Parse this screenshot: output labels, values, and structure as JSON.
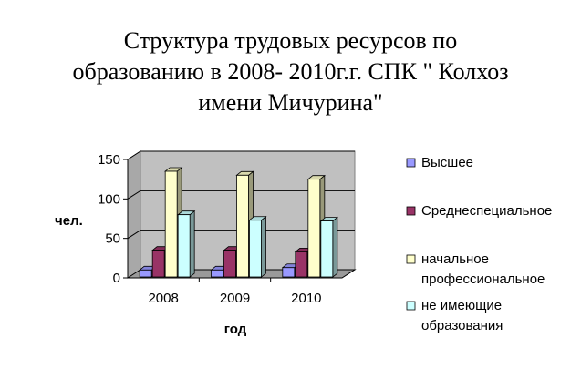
{
  "chart_data": {
    "type": "bar",
    "title_lines": [
      "Структура трудовых ресурсов по",
      "образованию в 2008- 2010г.г. СПК \" Колхоз",
      "имени Мичурина\""
    ],
    "xlabel": "год",
    "ylabel": "чел.",
    "categories": [
      "2008",
      "2009",
      "2010"
    ],
    "ylim": [
      0,
      150
    ],
    "yticks": [
      0,
      50,
      100,
      150
    ],
    "grid": true,
    "legend_position": "right",
    "style": "3d-column",
    "series": [
      {
        "name": "Высшее",
        "values": [
          10,
          10,
          13
        ],
        "color": "#9999ff"
      },
      {
        "name": "Среднеспециальное",
        "values": [
          35,
          35,
          33
        ],
        "color": "#993366"
      },
      {
        "name": "начальное профессиональное",
        "legend_lines": [
          "начальное",
          "профессиональное"
        ],
        "values": [
          135,
          130,
          125
        ],
        "color": "#ffffcc"
      },
      {
        "name": "не имеющие образования",
        "legend_lines": [
          "не имеющие",
          "образования"
        ],
        "values": [
          80,
          73,
          72
        ],
        "color": "#ccffff"
      }
    ]
  }
}
